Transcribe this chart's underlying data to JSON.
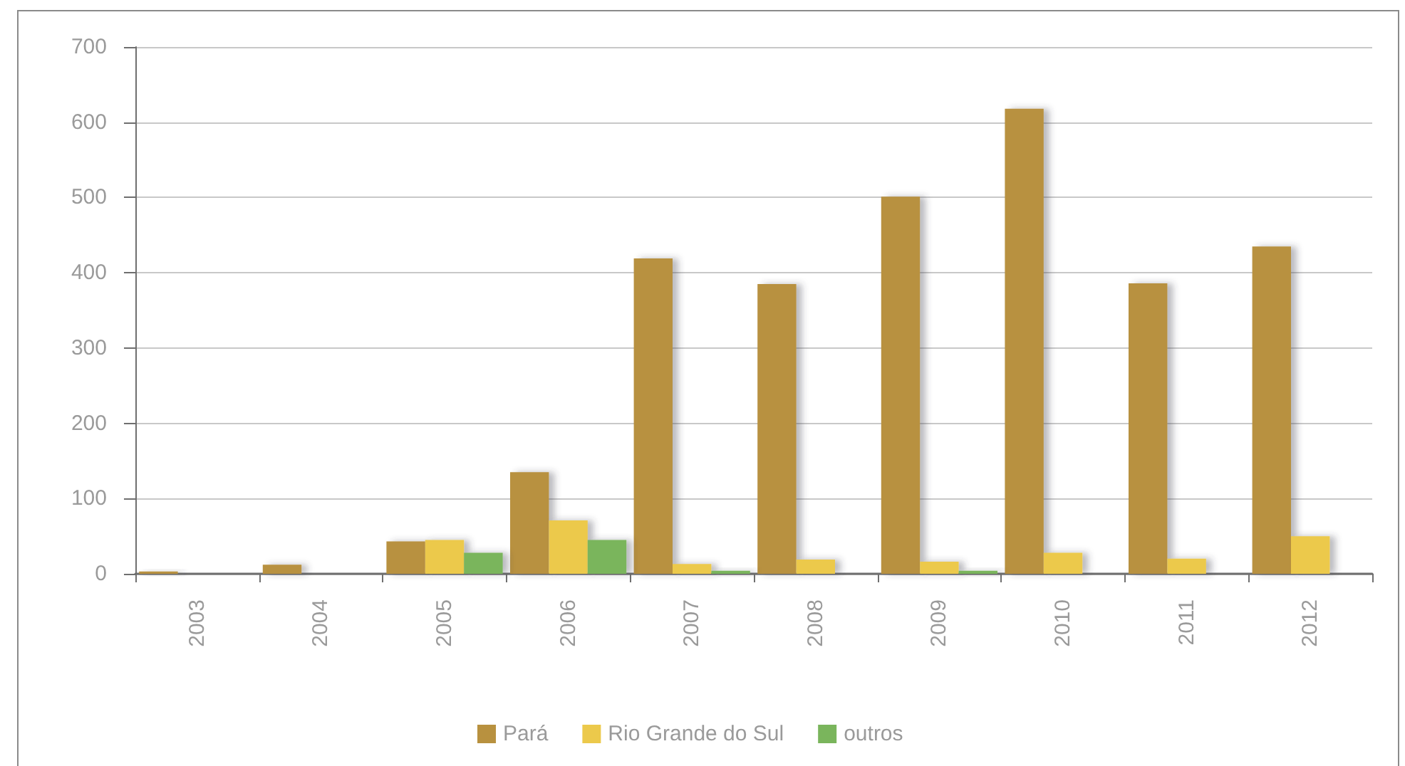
{
  "chart_data": {
    "type": "bar",
    "categories": [
      "2003",
      "2004",
      "2005",
      "2006",
      "2007",
      "2008",
      "2009",
      "2010",
      "2011",
      "2012"
    ],
    "series": [
      {
        "name": "Pará",
        "color": "#b8913f",
        "values": [
          3,
          12,
          43,
          135,
          419,
          385,
          501,
          618,
          386,
          435
        ]
      },
      {
        "name": "Rio Grande do Sul",
        "color": "#ecc94b",
        "values": [
          0,
          0,
          45,
          71,
          13,
          19,
          16,
          28,
          20,
          50
        ]
      },
      {
        "name": "outros",
        "color": "#7ab55c",
        "values": [
          0,
          0,
          28,
          45,
          4,
          0,
          4,
          0,
          0,
          0
        ]
      }
    ],
    "ylim": [
      0,
      700
    ],
    "yticks": [
      0,
      100,
      200,
      300,
      400,
      500,
      600,
      700
    ],
    "grid": "y",
    "legend": "bottom"
  }
}
